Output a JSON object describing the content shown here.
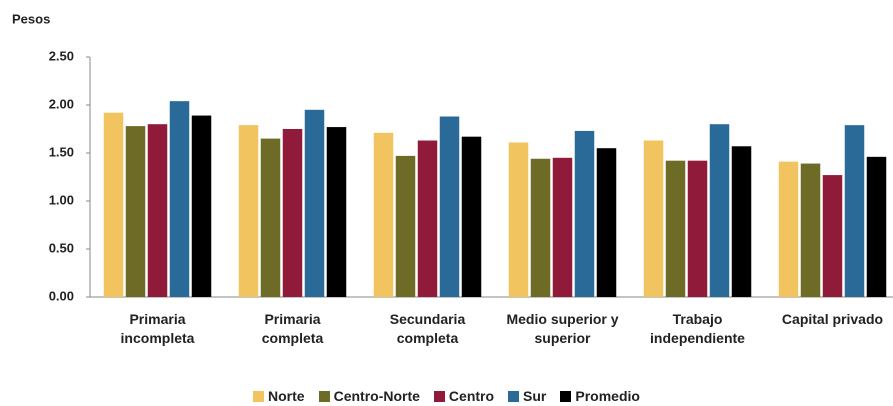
{
  "chart_data": {
    "type": "bar",
    "y_label": "Pesos",
    "categories": [
      "Primaria\nincompleta",
      "Primaria\ncompleta",
      "Secundaria\ncompleta",
      "Medio superior y\nsuperior",
      "Trabajo\nindependiente",
      "Capital privado"
    ],
    "series": [
      {
        "name": "Norte",
        "color": "#f2c45f",
        "values": [
          1.92,
          1.79,
          1.71,
          1.61,
          1.63,
          1.41
        ]
      },
      {
        "name": "Centro-Norte",
        "color": "#6e6b27",
        "values": [
          1.78,
          1.65,
          1.47,
          1.44,
          1.42,
          1.39
        ]
      },
      {
        "name": "Centro",
        "color": "#8f1a3a",
        "values": [
          1.8,
          1.75,
          1.63,
          1.45,
          1.42,
          1.27
        ]
      },
      {
        "name": "Sur",
        "color": "#2a6a99",
        "values": [
          2.04,
          1.95,
          1.88,
          1.73,
          1.8,
          1.79
        ]
      },
      {
        "name": "Promedio",
        "color": "#000000",
        "values": [
          1.89,
          1.77,
          1.67,
          1.55,
          1.57,
          1.46
        ]
      }
    ],
    "ylim": [
      0,
      2.5
    ],
    "yticks": [
      {
        "value": 0,
        "label": "0.00"
      },
      {
        "value": 0.5,
        "label": "0.50"
      },
      {
        "value": 1,
        "label": "1.00"
      },
      {
        "value": 1.5,
        "label": "1.50"
      },
      {
        "value": 2,
        "label": "2.00"
      },
      {
        "value": 2.5,
        "label": "2.50"
      }
    ],
    "grid": false,
    "legend": "bottom"
  }
}
